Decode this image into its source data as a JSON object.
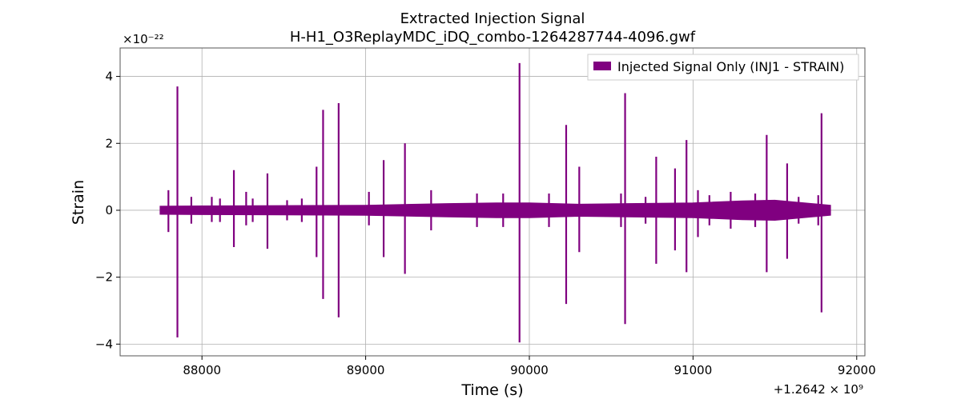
{
  "chart_data": {
    "type": "line",
    "title": "Extracted Injection Signal",
    "subtitle": "H-H1_O3ReplayMDC_iDQ_combo-1264287744-4096.gwf",
    "xlabel": "Time (s)",
    "ylabel": "Strain",
    "x_offset_label": "+1.2642 × 10⁹",
    "y_scale_label": "×10⁻²²",
    "xlim": [
      87500,
      92050
    ],
    "ylim": [
      -4.35,
      4.85
    ],
    "x_ticks": [
      88000,
      89000,
      90000,
      91000,
      92000
    ],
    "x_tick_labels": [
      "88000",
      "89000",
      "90000",
      "91000",
      "92000"
    ],
    "y_ticks": [
      4,
      2,
      0,
      -2,
      -4
    ],
    "y_tick_labels": [
      "4",
      "2",
      "0",
      "−2",
      "−4"
    ],
    "grid": true,
    "legend_position": "top-right",
    "series": [
      {
        "name": "Injected Signal Only (INJ1 - STRAIN)",
        "color": "#800080",
        "x_range": [
          87744,
          91840
        ],
        "baseline_band": [
          [
            87744,
            0.12
          ],
          [
            88000,
            0.13
          ],
          [
            88500,
            0.14
          ],
          [
            89000,
            0.15
          ],
          [
            89500,
            0.2
          ],
          [
            89800,
            0.22
          ],
          [
            90000,
            0.22
          ],
          [
            90300,
            0.18
          ],
          [
            90600,
            0.2
          ],
          [
            91000,
            0.22
          ],
          [
            91300,
            0.28
          ],
          [
            91500,
            0.3
          ],
          [
            91840,
            0.15
          ]
        ],
        "spikes": [
          {
            "x": 87795,
            "ymax": 0.6,
            "ymin": -0.65
          },
          {
            "x": 87850,
            "ymax": 3.7,
            "ymin": -3.8
          },
          {
            "x": 87935,
            "ymax": 0.4,
            "ymin": -0.4
          },
          {
            "x": 88060,
            "ymax": 0.4,
            "ymin": -0.35
          },
          {
            "x": 88110,
            "ymax": 0.35,
            "ymin": -0.35
          },
          {
            "x": 88195,
            "ymax": 1.2,
            "ymin": -1.1
          },
          {
            "x": 88270,
            "ymax": 0.55,
            "ymin": -0.45
          },
          {
            "x": 88310,
            "ymax": 0.35,
            "ymin": -0.35
          },
          {
            "x": 88400,
            "ymax": 1.1,
            "ymin": -1.15
          },
          {
            "x": 88520,
            "ymax": 0.3,
            "ymin": -0.3
          },
          {
            "x": 88610,
            "ymax": 0.35,
            "ymin": -0.35
          },
          {
            "x": 88700,
            "ymax": 1.3,
            "ymin": -1.4
          },
          {
            "x": 88740,
            "ymax": 3.0,
            "ymin": -2.65
          },
          {
            "x": 88835,
            "ymax": 3.2,
            "ymin": -3.2
          },
          {
            "x": 89020,
            "ymax": 0.55,
            "ymin": -0.45
          },
          {
            "x": 89110,
            "ymax": 1.5,
            "ymin": -1.4
          },
          {
            "x": 89240,
            "ymax": 2.0,
            "ymin": -1.9
          },
          {
            "x": 89400,
            "ymax": 0.6,
            "ymin": -0.6
          },
          {
            "x": 89680,
            "ymax": 0.5,
            "ymin": -0.5
          },
          {
            "x": 89840,
            "ymax": 0.5,
            "ymin": -0.5
          },
          {
            "x": 89940,
            "ymax": 4.4,
            "ymin": -3.95
          },
          {
            "x": 90120,
            "ymax": 0.5,
            "ymin": -0.5
          },
          {
            "x": 90225,
            "ymax": 2.55,
            "ymin": -2.8
          },
          {
            "x": 90305,
            "ymax": 1.3,
            "ymin": -1.25
          },
          {
            "x": 90560,
            "ymax": 0.5,
            "ymin": -0.5
          },
          {
            "x": 90585,
            "ymax": 3.5,
            "ymin": -3.4
          },
          {
            "x": 90710,
            "ymax": 0.4,
            "ymin": -0.4
          },
          {
            "x": 90775,
            "ymax": 1.6,
            "ymin": -1.6
          },
          {
            "x": 90890,
            "ymax": 1.25,
            "ymin": -1.2
          },
          {
            "x": 90960,
            "ymax": 2.1,
            "ymin": -1.85
          },
          {
            "x": 91030,
            "ymax": 0.6,
            "ymin": -0.8
          },
          {
            "x": 91100,
            "ymax": 0.45,
            "ymin": -0.45
          },
          {
            "x": 91230,
            "ymax": 0.55,
            "ymin": -0.55
          },
          {
            "x": 91380,
            "ymax": 0.5,
            "ymin": -0.5
          },
          {
            "x": 91450,
            "ymax": 2.25,
            "ymin": -1.85
          },
          {
            "x": 91575,
            "ymax": 1.4,
            "ymin": -1.45
          },
          {
            "x": 91645,
            "ymax": 0.4,
            "ymin": -0.4
          },
          {
            "x": 91765,
            "ymax": 0.45,
            "ymin": -0.45
          },
          {
            "x": 91785,
            "ymax": 2.9,
            "ymin": -3.05
          }
        ]
      }
    ]
  }
}
